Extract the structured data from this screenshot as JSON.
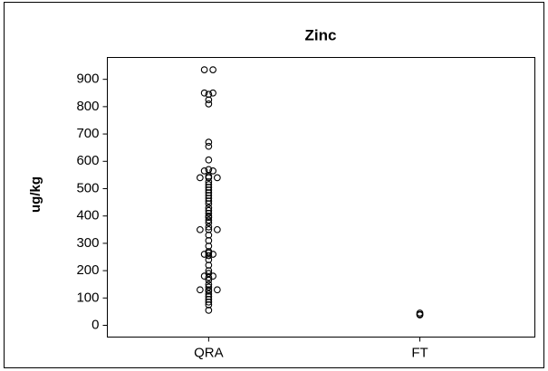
{
  "chart_data": {
    "type": "strip",
    "title": "Zinc",
    "y_label": "ug/kg",
    "categories": [
      "QRA",
      "FT"
    ],
    "values": [
      [
        935,
        935,
        850,
        850,
        845,
        825,
        810,
        670,
        655,
        605,
        570,
        565,
        565,
        545,
        540,
        540,
        540,
        525,
        515,
        505,
        495,
        485,
        475,
        465,
        455,
        445,
        430,
        420,
        410,
        400,
        395,
        385,
        375,
        360,
        350,
        350,
        350,
        330,
        310,
        290,
        270,
        265,
        260,
        260,
        255,
        240,
        220,
        200,
        190,
        180,
        180,
        175,
        165,
        150,
        140,
        130,
        130,
        130,
        125,
        115,
        105,
        95,
        85,
        75,
        55
      ],
      [
        45,
        40,
        38
      ]
    ],
    "color": "#000000",
    "ylim": [
      -43,
      980
    ],
    "yticks": [
      0,
      100,
      200,
      300,
      400,
      500,
      600,
      700,
      800,
      900
    ]
  }
}
